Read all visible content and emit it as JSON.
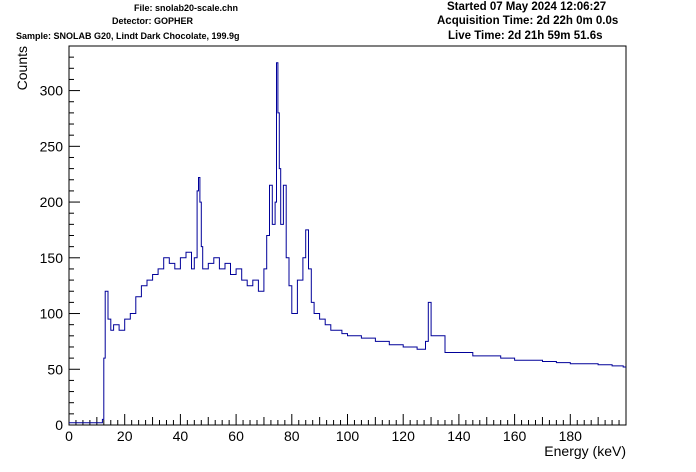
{
  "header": {
    "file": "File: snolab20-scale.chn",
    "detector": "Detector: GOPHER",
    "sample": "Sample: SNOLAB G20, Lindt Dark Chocolate, 199.9g",
    "started": "Started 07 May 2024 12:06:27",
    "acquisition_time": "Acquisition Time: 2d 22h 0m 0.0s",
    "live_time": "Live Time: 2d 21h 59m 51.6s"
  },
  "chart_data": {
    "type": "line",
    "style": "step-histogram",
    "title": "",
    "xlabel": "Energy (keV)",
    "ylabel": "Counts",
    "xlim": [
      0,
      200
    ],
    "ylim": [
      0,
      340
    ],
    "x_ticks": [
      0,
      20,
      40,
      60,
      80,
      100,
      120,
      140,
      160,
      180
    ],
    "y_ticks": [
      0,
      50,
      100,
      150,
      200,
      250,
      300
    ],
    "grid": false,
    "legend": "none",
    "line_color": "#000099",
    "series": [
      {
        "x": [
          0,
          12,
          12.5,
          13,
          14,
          15,
          16,
          18,
          20,
          22,
          24,
          26,
          28,
          30,
          32,
          34,
          36,
          38,
          40,
          42,
          44,
          45,
          46,
          46.5,
          47,
          47.5,
          48,
          50,
          52,
          54,
          56,
          58,
          60,
          62,
          64,
          66,
          68,
          70,
          71,
          72,
          73,
          74,
          74.5,
          75,
          75.5,
          76,
          77,
          78,
          79,
          80,
          82,
          84,
          85,
          86,
          87,
          88,
          90,
          92,
          94,
          96,
          98,
          100,
          105,
          110,
          115,
          120,
          125,
          128,
          129,
          130,
          135,
          140,
          145,
          150,
          155,
          160,
          165,
          170,
          175,
          180,
          185,
          190,
          195,
          199
        ],
        "y": [
          2,
          5,
          60,
          120,
          95,
          85,
          90,
          85,
          95,
          100,
          115,
          125,
          130,
          135,
          140,
          150,
          145,
          140,
          150,
          155,
          140,
          150,
          210,
          222,
          200,
          160,
          140,
          145,
          150,
          140,
          145,
          135,
          140,
          130,
          125,
          130,
          120,
          140,
          170,
          215,
          180,
          200,
          325,
          280,
          230,
          180,
          215,
          150,
          125,
          100,
          130,
          150,
          175,
          140,
          110,
          100,
          95,
          90,
          85,
          85,
          82,
          80,
          78,
          75,
          72,
          70,
          68,
          75,
          110,
          80,
          65,
          65,
          62,
          62,
          60,
          58,
          58,
          57,
          56,
          55,
          55,
          54,
          53,
          52
        ]
      }
    ]
  }
}
